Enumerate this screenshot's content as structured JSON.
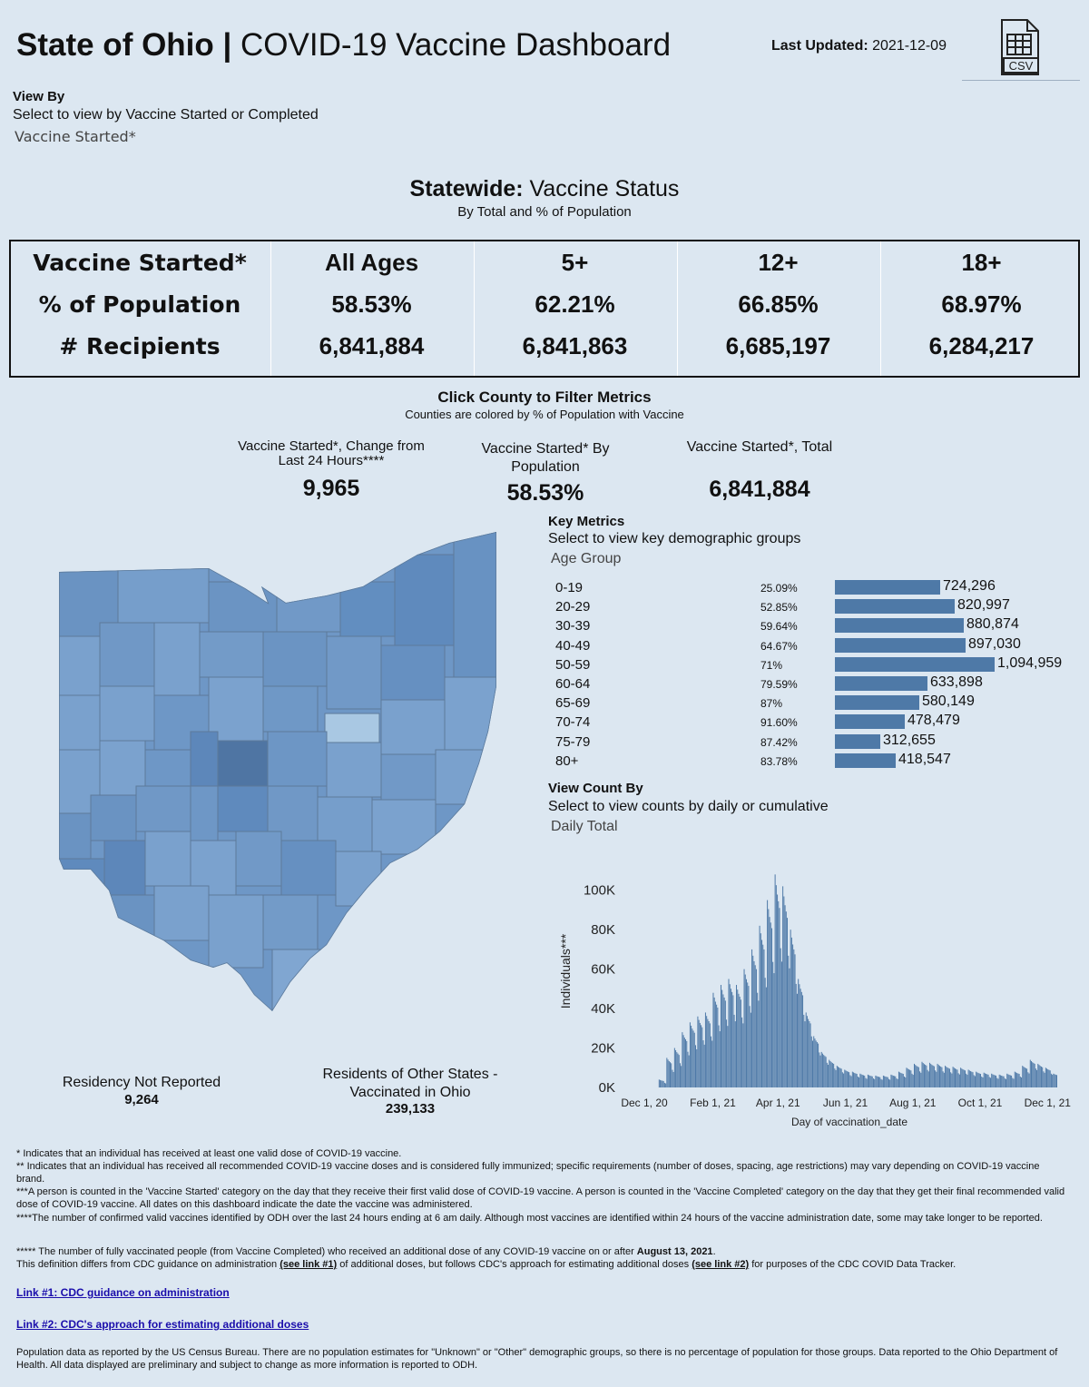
{
  "header": {
    "title_bold": "State of Ohio |",
    "title_rest": " COVID-19 Vaccine Dashboard",
    "last_updated_label": "Last Updated:",
    "last_updated_value": "2021-12-09",
    "csv_icon": "csv-file-icon",
    "csv_label": "CSV"
  },
  "view_by": {
    "heading": "View By",
    "subtitle": "Select to view by Vaccine Started or Completed",
    "value": "Vaccine Started*"
  },
  "statewide": {
    "heading_bold": "Statewide:",
    "heading_rest": " Vaccine Status",
    "subtitle": "By Total and % of Population",
    "row_labels": [
      "Vaccine Started*",
      "% of Population",
      "# Recipients"
    ],
    "columns": [
      {
        "header": "All Ages",
        "pct": "58.53%",
        "recipients": "6,841,884"
      },
      {
        "header": "5+",
        "pct": "62.21%",
        "recipients": "6,841,863"
      },
      {
        "header": "12+",
        "pct": "66.85%",
        "recipients": "6,685,197"
      },
      {
        "header": "18+",
        "pct": "68.97%",
        "recipients": "6,284,217"
      }
    ]
  },
  "county": {
    "heading": "Click County to Filter Metrics",
    "subtitle": "Counties are colored by % of Population with Vaccine"
  },
  "kpis": {
    "change_label": "Vaccine Started*, Change from Last 24 Hours****",
    "change_value": "9,965",
    "pop_label": "Vaccine Started* By Population",
    "pop_value": "58.53%",
    "total_label": "Vaccine Started*, Total",
    "total_value": "6,841,884"
  },
  "map": {
    "residency_label": "Residency Not Reported",
    "residency_value": "9,264",
    "other_states_label": "Residents of Other States - Vaccinated in Ohio",
    "other_states_value": "239,133",
    "highlight_color": "#a9c8e3",
    "dark_color": "#4f75a3"
  },
  "key_metrics": {
    "heading": "Key Metrics",
    "subtitle": "Select to view key demographic groups",
    "value": "Age Group",
    "rows": [
      {
        "group": "0-19",
        "pct": "25.09%",
        "count": 724296,
        "count_label": "724,296"
      },
      {
        "group": "20-29",
        "pct": "52.85%",
        "count": 820997,
        "count_label": "820,997"
      },
      {
        "group": "30-39",
        "pct": "59.64%",
        "count": 880874,
        "count_label": "880,874"
      },
      {
        "group": "40-49",
        "pct": "64.67%",
        "count": 897030,
        "count_label": "897,030"
      },
      {
        "group": "50-59",
        "pct": "71%",
        "count": 1094959,
        "count_label": "1,094,959"
      },
      {
        "group": "60-64",
        "pct": "79.59%",
        "count": 633898,
        "count_label": "633,898"
      },
      {
        "group": "65-69",
        "pct": "87%",
        "count": 580149,
        "count_label": "580,149"
      },
      {
        "group": "70-74",
        "pct": "91.60%",
        "count": 478479,
        "count_label": "478,479"
      },
      {
        "group": "75-79",
        "pct": "87.42%",
        "count": 312655,
        "count_label": "312,655"
      },
      {
        "group": "80+",
        "pct": "83.78%",
        "count": 418547,
        "count_label": "418,547"
      }
    ]
  },
  "view_count": {
    "heading": "View Count By",
    "subtitle": "Select to view counts by daily or cumulative",
    "value": "Daily Total"
  },
  "chart_data": {
    "type": "bar",
    "xlabel": "Day of vaccination_date",
    "ylabel": "Individuals***",
    "ylim": [
      0,
      110000
    ],
    "y_ticks": [
      "0K",
      "20K",
      "40K",
      "60K",
      "80K",
      "100K"
    ],
    "x_ticks": [
      "Dec 1, 20",
      "Feb 1, 21",
      "Apr 1, 21",
      "Jun 1, 21",
      "Aug 1, 21",
      "Oct 1, 21",
      "Dec 1, 21"
    ],
    "bar_color": "#4e79a7",
    "weekly_levels": [
      {
        "week_start": "2020-12-14",
        "peak": 4000,
        "base": 1000
      },
      {
        "week_start": "2020-12-21",
        "peak": 15000,
        "base": 4000
      },
      {
        "week_start": "2020-12-28",
        "peak": 20000,
        "base": 6000
      },
      {
        "week_start": "2021-01-04",
        "peak": 28000,
        "base": 10000
      },
      {
        "week_start": "2021-01-11",
        "peak": 33000,
        "base": 12000
      },
      {
        "week_start": "2021-01-18",
        "peak": 36000,
        "base": 14000
      },
      {
        "week_start": "2021-01-25",
        "peak": 38000,
        "base": 16000
      },
      {
        "week_start": "2021-02-01",
        "peak": 48000,
        "base": 18000
      },
      {
        "week_start": "2021-02-08",
        "peak": 52000,
        "base": 20000
      },
      {
        "week_start": "2021-02-15",
        "peak": 55000,
        "base": 22000
      },
      {
        "week_start": "2021-02-22",
        "peak": 52000,
        "base": 22000
      },
      {
        "week_start": "2021-03-01",
        "peak": 60000,
        "base": 26000
      },
      {
        "week_start": "2021-03-08",
        "peak": 70000,
        "base": 30000
      },
      {
        "week_start": "2021-03-15",
        "peak": 82000,
        "base": 34000
      },
      {
        "week_start": "2021-03-22",
        "peak": 95000,
        "base": 38000
      },
      {
        "week_start": "2021-03-29",
        "peak": 108000,
        "base": 40000
      },
      {
        "week_start": "2021-04-05",
        "peak": 102000,
        "base": 38000
      },
      {
        "week_start": "2021-04-12",
        "peak": 80000,
        "base": 30000
      },
      {
        "week_start": "2021-04-19",
        "peak": 55000,
        "base": 22000
      },
      {
        "week_start": "2021-04-26",
        "peak": 38000,
        "base": 16000
      },
      {
        "week_start": "2021-05-03",
        "peak": 26000,
        "base": 11000
      },
      {
        "week_start": "2021-05-10",
        "peak": 18000,
        "base": 8000
      },
      {
        "week_start": "2021-05-17",
        "peak": 14000,
        "base": 6000
      },
      {
        "week_start": "2021-05-24",
        "peak": 11000,
        "base": 5000
      },
      {
        "week_start": "2021-05-31",
        "peak": 9000,
        "base": 4000
      },
      {
        "week_start": "2021-06-07",
        "peak": 8000,
        "base": 3500
      },
      {
        "week_start": "2021-06-14",
        "peak": 7000,
        "base": 3000
      },
      {
        "week_start": "2021-06-21",
        "peak": 6500,
        "base": 3000
      },
      {
        "week_start": "2021-06-28",
        "peak": 6000,
        "base": 2800
      },
      {
        "week_start": "2021-07-05",
        "peak": 6000,
        "base": 2800
      },
      {
        "week_start": "2021-07-12",
        "peak": 6500,
        "base": 3000
      },
      {
        "week_start": "2021-07-19",
        "peak": 8000,
        "base": 3500
      },
      {
        "week_start": "2021-07-26",
        "peak": 10000,
        "base": 4500
      },
      {
        "week_start": "2021-08-02",
        "peak": 12000,
        "base": 5000
      },
      {
        "week_start": "2021-08-09",
        "peak": 13000,
        "base": 5500
      },
      {
        "week_start": "2021-08-16",
        "peak": 12500,
        "base": 5500
      },
      {
        "week_start": "2021-08-23",
        "peak": 12000,
        "base": 5000
      },
      {
        "week_start": "2021-08-30",
        "peak": 11000,
        "base": 5000
      },
      {
        "week_start": "2021-09-06",
        "peak": 10500,
        "base": 4500
      },
      {
        "week_start": "2021-09-13",
        "peak": 10000,
        "base": 4500
      },
      {
        "week_start": "2021-09-20",
        "peak": 9000,
        "base": 4000
      },
      {
        "week_start": "2021-09-27",
        "peak": 8000,
        "base": 3500
      },
      {
        "week_start": "2021-10-04",
        "peak": 7500,
        "base": 3500
      },
      {
        "week_start": "2021-10-11",
        "peak": 7000,
        "base": 3000
      },
      {
        "week_start": "2021-10-18",
        "peak": 6500,
        "base": 3000
      },
      {
        "week_start": "2021-10-25",
        "peak": 7000,
        "base": 3000
      },
      {
        "week_start": "2021-11-01",
        "peak": 8000,
        "base": 3500
      },
      {
        "week_start": "2021-11-08",
        "peak": 11000,
        "base": 5000
      },
      {
        "week_start": "2021-11-15",
        "peak": 14000,
        "base": 6000
      },
      {
        "week_start": "2021-11-22",
        "peak": 12000,
        "base": 5000
      },
      {
        "week_start": "2021-11-29",
        "peak": 10000,
        "base": 4500
      },
      {
        "week_start": "2021-12-06",
        "peak": 7000,
        "base": 3500
      }
    ]
  },
  "footnotes": {
    "f1": "* Indicates that an individual has received at least one valid dose of COVID-19 vaccine.",
    "f2": "** Indicates that an individual has received all recommended COVID-19 vaccine doses and is considered fully immunized; specific requirements (number of doses, spacing, age restrictions) may vary depending on COVID-19 vaccine brand.",
    "f3": "***A person is counted in the 'Vaccine Started' category on the day that they receive their first valid dose of COVID-19 vaccine.  A person is counted in the 'Vaccine Completed' category on the day that they get their final recommended valid dose of COVID-19 vaccine. All dates on this dashboard indicate the date the vaccine was administered.",
    "f4": "****The number of confirmed valid vaccines identified by ODH over the last 24 hours ending at 6 am daily. Although most vaccines are identified within 24 hours of the vaccine administration date, some may take longer to be reported.",
    "f5_a": "***** The number of fully vaccinated people (from Vaccine Completed) who received an additional dose of any COVID-19 vaccine on or after ",
    "f5_date": "August 13, 2021",
    "f5_b": ".",
    "f6_a": "This definition differs from CDC guidance on administration ",
    "f6_link1": "(see link #1)",
    "f6_b": " of additional doses, but follows CDC's approach for estimating additional doses ",
    "f6_link2": "(see link #2)",
    "f6_c": " for purposes of the CDC COVID Data Tracker.",
    "link1": "Link #1: CDC guidance on administration",
    "link2": "Link #2: CDC's approach for estimating additional doses",
    "population": "Population data as reported by the US Census Bureau. There are no population estimates for \"Unknown\" or \"Other\" demographic groups, so there is no percentage of population for those groups.  Data reported to the Ohio Department of Health.  All data displayed are preliminary and subject to change as more information is reported to ODH."
  }
}
